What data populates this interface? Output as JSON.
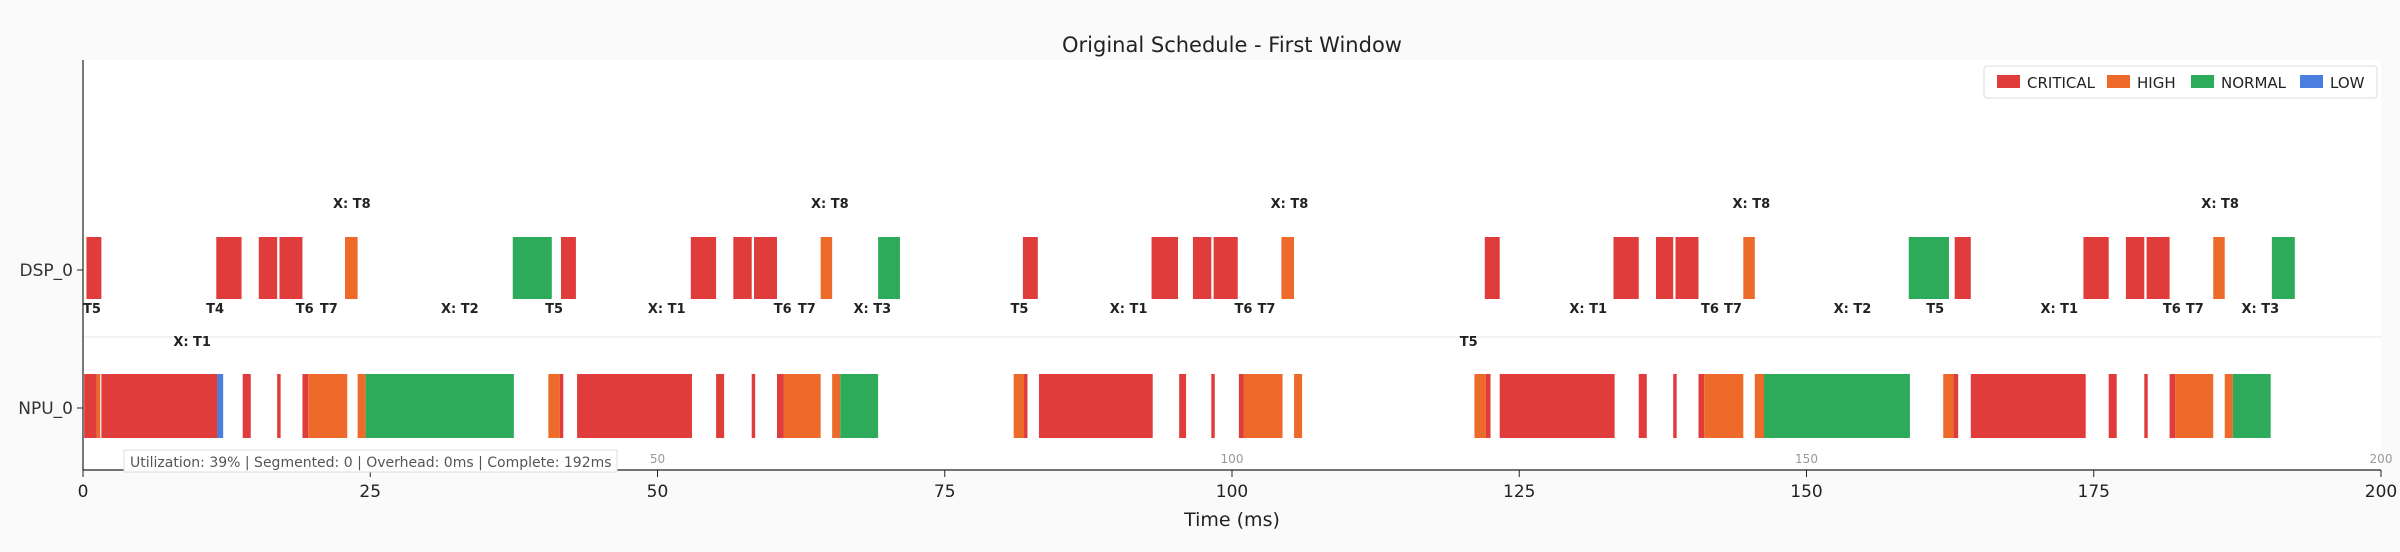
{
  "chart_data": {
    "type": "gantt",
    "title": "Original Schedule - First Window",
    "xlabel": "Time (ms)",
    "xlim": [
      0,
      200
    ],
    "x_ticks": [
      0,
      25,
      50,
      75,
      100,
      125,
      150,
      175,
      200
    ],
    "inner_ticks": [
      50,
      100,
      150,
      200
    ],
    "resources": [
      "DSP_0",
      "NPU_0"
    ],
    "legend": [
      {
        "label": "CRITICAL",
        "color": "#e03c3c"
      },
      {
        "label": "HIGH",
        "color": "#ee6a2a"
      },
      {
        "label": "NORMAL",
        "color": "#2eab5a"
      },
      {
        "label": "LOW",
        "color": "#4a7fe0"
      }
    ],
    "stats_text": "Utilization: 39% | Segmented: 0 | Overhead: 0ms | Complete: 192ms",
    "tasks": {
      "DSP_0": [
        {
          "start": 0.3,
          "end": 1.6,
          "priority": "CRITICAL"
        },
        {
          "start": 11.6,
          "end": 13.8,
          "priority": "CRITICAL"
        },
        {
          "start": 15.3,
          "end": 16.9,
          "priority": "CRITICAL"
        },
        {
          "start": 17.1,
          "end": 19.1,
          "priority": "CRITICAL"
        },
        {
          "start": 22.8,
          "end": 23.9,
          "priority": "HIGH"
        },
        {
          "start": 37.4,
          "end": 40.8,
          "priority": "NORMAL"
        },
        {
          "start": 41.6,
          "end": 42.9,
          "priority": "CRITICAL"
        },
        {
          "start": 52.9,
          "end": 55.1,
          "priority": "CRITICAL"
        },
        {
          "start": 56.6,
          "end": 58.2,
          "priority": "CRITICAL"
        },
        {
          "start": 58.4,
          "end": 60.4,
          "priority": "CRITICAL"
        },
        {
          "start": 64.2,
          "end": 65.2,
          "priority": "HIGH"
        },
        {
          "start": 69.2,
          "end": 71.1,
          "priority": "NORMAL"
        },
        {
          "start": 81.8,
          "end": 83.1,
          "priority": "CRITICAL"
        },
        {
          "start": 93.0,
          "end": 95.3,
          "priority": "CRITICAL"
        },
        {
          "start": 96.6,
          "end": 98.2,
          "priority": "CRITICAL"
        },
        {
          "start": 98.4,
          "end": 100.5,
          "priority": "CRITICAL"
        },
        {
          "start": 104.3,
          "end": 105.4,
          "priority": "HIGH"
        },
        {
          "start": 122.0,
          "end": 123.3,
          "priority": "CRITICAL"
        },
        {
          "start": 133.2,
          "end": 135.4,
          "priority": "CRITICAL"
        },
        {
          "start": 136.9,
          "end": 138.4,
          "priority": "CRITICAL"
        },
        {
          "start": 138.6,
          "end": 140.6,
          "priority": "CRITICAL"
        },
        {
          "start": 144.5,
          "end": 145.5,
          "priority": "HIGH"
        },
        {
          "start": 158.9,
          "end": 162.4,
          "priority": "NORMAL"
        },
        {
          "start": 162.9,
          "end": 164.3,
          "priority": "CRITICAL"
        },
        {
          "start": 174.1,
          "end": 176.3,
          "priority": "CRITICAL"
        },
        {
          "start": 177.8,
          "end": 179.4,
          "priority": "CRITICAL"
        },
        {
          "start": 179.6,
          "end": 181.6,
          "priority": "CRITICAL"
        },
        {
          "start": 185.4,
          "end": 186.4,
          "priority": "HIGH"
        },
        {
          "start": 190.5,
          "end": 192.5,
          "priority": "NORMAL"
        }
      ],
      "NPU_0": [
        {
          "start": 0.1,
          "end": 1.2,
          "priority": "CRITICAL"
        },
        {
          "start": 1.2,
          "end": 1.5,
          "priority": "HIGH"
        },
        {
          "start": 1.6,
          "end": 11.7,
          "priority": "CRITICAL"
        },
        {
          "start": 11.7,
          "end": 12.2,
          "priority": "LOW"
        },
        {
          "start": 13.9,
          "end": 14.6,
          "priority": "CRITICAL"
        },
        {
          "start": 16.9,
          "end": 17.2,
          "priority": "CRITICAL"
        },
        {
          "start": 19.1,
          "end": 19.6,
          "priority": "CRITICAL"
        },
        {
          "start": 19.6,
          "end": 23.0,
          "priority": "HIGH"
        },
        {
          "start": 23.9,
          "end": 24.6,
          "priority": "HIGH"
        },
        {
          "start": 24.6,
          "end": 37.5,
          "priority": "NORMAL"
        },
        {
          "start": 40.5,
          "end": 41.5,
          "priority": "HIGH"
        },
        {
          "start": 41.5,
          "end": 41.8,
          "priority": "CRITICAL"
        },
        {
          "start": 43.0,
          "end": 53.0,
          "priority": "CRITICAL"
        },
        {
          "start": 55.1,
          "end": 55.8,
          "priority": "CRITICAL"
        },
        {
          "start": 58.2,
          "end": 58.5,
          "priority": "CRITICAL"
        },
        {
          "start": 60.4,
          "end": 61.0,
          "priority": "CRITICAL"
        },
        {
          "start": 61.0,
          "end": 64.2,
          "priority": "HIGH"
        },
        {
          "start": 65.2,
          "end": 65.9,
          "priority": "HIGH"
        },
        {
          "start": 65.9,
          "end": 69.2,
          "priority": "NORMAL"
        },
        {
          "start": 81.0,
          "end": 81.9,
          "priority": "HIGH"
        },
        {
          "start": 81.9,
          "end": 82.2,
          "priority": "CRITICAL"
        },
        {
          "start": 83.2,
          "end": 93.1,
          "priority": "CRITICAL"
        },
        {
          "start": 95.4,
          "end": 96.0,
          "priority": "CRITICAL"
        },
        {
          "start": 98.2,
          "end": 98.5,
          "priority": "CRITICAL"
        },
        {
          "start": 100.6,
          "end": 101.0,
          "priority": "CRITICAL"
        },
        {
          "start": 101.0,
          "end": 104.4,
          "priority": "HIGH"
        },
        {
          "start": 105.4,
          "end": 106.1,
          "priority": "HIGH"
        },
        {
          "start": 121.1,
          "end": 122.1,
          "priority": "HIGH"
        },
        {
          "start": 122.1,
          "end": 122.5,
          "priority": "CRITICAL"
        },
        {
          "start": 123.3,
          "end": 133.3,
          "priority": "CRITICAL"
        },
        {
          "start": 135.4,
          "end": 136.1,
          "priority": "CRITICAL"
        },
        {
          "start": 138.4,
          "end": 138.7,
          "priority": "CRITICAL"
        },
        {
          "start": 140.6,
          "end": 141.1,
          "priority": "CRITICAL"
        },
        {
          "start": 141.1,
          "end": 144.5,
          "priority": "HIGH"
        },
        {
          "start": 145.5,
          "end": 146.3,
          "priority": "HIGH"
        },
        {
          "start": 146.3,
          "end": 159.0,
          "priority": "NORMAL"
        },
        {
          "start": 161.9,
          "end": 162.8,
          "priority": "HIGH"
        },
        {
          "start": 162.8,
          "end": 163.2,
          "priority": "CRITICAL"
        },
        {
          "start": 164.3,
          "end": 174.3,
          "priority": "CRITICAL"
        },
        {
          "start": 176.3,
          "end": 177.0,
          "priority": "CRITICAL"
        },
        {
          "start": 179.4,
          "end": 179.7,
          "priority": "CRITICAL"
        },
        {
          "start": 181.6,
          "end": 182.1,
          "priority": "CRITICAL"
        },
        {
          "start": 182.1,
          "end": 185.4,
          "priority": "HIGH"
        },
        {
          "start": 186.4,
          "end": 187.1,
          "priority": "HIGH"
        },
        {
          "start": 187.1,
          "end": 190.4,
          "priority": "NORMAL"
        }
      ]
    },
    "annotations": [
      {
        "text": "X: T8",
        "x": 23.4,
        "band": "dsp_above"
      },
      {
        "text": "X: T8",
        "x": 65.0,
        "band": "dsp_above"
      },
      {
        "text": "X: T8",
        "x": 105.0,
        "band": "dsp_above"
      },
      {
        "text": "X: T8",
        "x": 145.2,
        "band": "dsp_above"
      },
      {
        "text": "X: T8",
        "x": 186.0,
        "band": "dsp_above"
      },
      {
        "text": "T5",
        "x": 0.0,
        "band": "dsp_below",
        "anchor": "start"
      },
      {
        "text": "T4",
        "x": 11.5,
        "band": "dsp_below"
      },
      {
        "text": "T6",
        "x": 19.3,
        "band": "dsp_below"
      },
      {
        "text": "T7",
        "x": 21.4,
        "band": "dsp_below"
      },
      {
        "text": "X: T2",
        "x": 32.8,
        "band": "dsp_below"
      },
      {
        "text": "T5",
        "x": 41.0,
        "band": "dsp_below"
      },
      {
        "text": "X: T1",
        "x": 50.8,
        "band": "dsp_below"
      },
      {
        "text": "T6",
        "x": 60.9,
        "band": "dsp_below"
      },
      {
        "text": "T7",
        "x": 63.0,
        "band": "dsp_below"
      },
      {
        "text": "X: T3",
        "x": 68.7,
        "band": "dsp_below"
      },
      {
        "text": "T5",
        "x": 81.5,
        "band": "dsp_below"
      },
      {
        "text": "X: T1",
        "x": 91.0,
        "band": "dsp_below"
      },
      {
        "text": "T6",
        "x": 101.0,
        "band": "dsp_below"
      },
      {
        "text": "T7",
        "x": 103.0,
        "band": "dsp_below"
      },
      {
        "text": "X: T1",
        "x": 131.0,
        "band": "dsp_below"
      },
      {
        "text": "T6",
        "x": 141.6,
        "band": "dsp_below"
      },
      {
        "text": "T7",
        "x": 143.6,
        "band": "dsp_below"
      },
      {
        "text": "X: T2",
        "x": 154.0,
        "band": "dsp_below"
      },
      {
        "text": "T5",
        "x": 161.2,
        "band": "dsp_below"
      },
      {
        "text": "X: T1",
        "x": 172.0,
        "band": "dsp_below"
      },
      {
        "text": "T6",
        "x": 181.8,
        "band": "dsp_below"
      },
      {
        "text": "T7",
        "x": 183.8,
        "band": "dsp_below"
      },
      {
        "text": "X: T3",
        "x": 189.5,
        "band": "dsp_below"
      },
      {
        "text": "X: T1",
        "x": 9.5,
        "band": "npu_above"
      },
      {
        "text": "T5",
        "x": 120.6,
        "band": "npu_above"
      }
    ]
  }
}
